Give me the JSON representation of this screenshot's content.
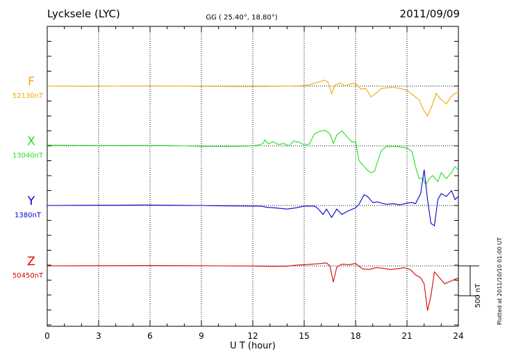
{
  "header": {
    "station": "Lycksele (LYC)",
    "coords": "GG ( 25.40°,  18.80°)",
    "date": "2011/09/09"
  },
  "footer_note": "Plotted at 2011/10/10 01:00 UT",
  "chart_data": {
    "type": "line",
    "xlabel": "U T (hour)",
    "xlim": [
      0,
      24
    ],
    "xticks": [
      "0",
      "3",
      "6",
      "9",
      "12",
      "15",
      "18",
      "21",
      "24"
    ],
    "scale_bar_label": "500 nT",
    "scale_bar_nT": 500,
    "ylim_nT": [
      -1000,
      1000
    ],
    "grid": true,
    "series": [
      {
        "name": "F",
        "baseline_label": "52130nT",
        "color": "#f0a800",
        "points": [
          [
            0,
            0
          ],
          [
            2,
            -2
          ],
          [
            4,
            0
          ],
          [
            6,
            2
          ],
          [
            8,
            0
          ],
          [
            9,
            -3
          ],
          [
            10,
            -6
          ],
          [
            11,
            -8
          ],
          [
            12,
            -8
          ],
          [
            12.7,
            -5
          ],
          [
            13,
            -3
          ],
          [
            14,
            0
          ],
          [
            14.8,
            5
          ],
          [
            15.3,
            20
          ],
          [
            15.8,
            65
          ],
          [
            16.2,
            100
          ],
          [
            16.4,
            60
          ],
          [
            16.6,
            -130
          ],
          [
            16.8,
            20
          ],
          [
            17.1,
            50
          ],
          [
            17.4,
            0
          ],
          [
            17.7,
            40
          ],
          [
            18.0,
            45
          ],
          [
            18.3,
            -50
          ],
          [
            18.6,
            -40
          ],
          [
            18.9,
            -180
          ],
          [
            19.2,
            -120
          ],
          [
            19.5,
            -40
          ],
          [
            19.8,
            -30
          ],
          [
            20.2,
            -20
          ],
          [
            20.6,
            -40
          ],
          [
            21.0,
            -70
          ],
          [
            21.4,
            -160
          ],
          [
            21.7,
            -230
          ],
          [
            22.0,
            -420
          ],
          [
            22.2,
            -500
          ],
          [
            22.5,
            -300
          ],
          [
            22.7,
            -120
          ],
          [
            22.9,
            -200
          ],
          [
            23.1,
            -250
          ],
          [
            23.3,
            -300
          ],
          [
            23.5,
            -200
          ],
          [
            23.8,
            -120
          ],
          [
            24,
            -100
          ]
        ]
      },
      {
        "name": "X",
        "baseline_label": "13040nT",
        "color": "#22dd22",
        "points": [
          [
            0,
            10
          ],
          [
            2,
            7
          ],
          [
            4,
            5
          ],
          [
            5.5,
            7
          ],
          [
            7,
            5
          ],
          [
            8,
            0
          ],
          [
            9,
            -10
          ],
          [
            10,
            -12
          ],
          [
            11,
            -10
          ],
          [
            11.7,
            -5
          ],
          [
            12.3,
            10
          ],
          [
            12.6,
            40
          ],
          [
            12.7,
            100
          ],
          [
            12.9,
            30
          ],
          [
            13.2,
            70
          ],
          [
            13.5,
            20
          ],
          [
            13.8,
            40
          ],
          [
            14.1,
            0
          ],
          [
            14.4,
            80
          ],
          [
            14.7,
            60
          ],
          [
            15.0,
            10
          ],
          [
            15.3,
            30
          ],
          [
            15.6,
            200
          ],
          [
            15.9,
            240
          ],
          [
            16.2,
            260
          ],
          [
            16.5,
            200
          ],
          [
            16.7,
            40
          ],
          [
            16.9,
            180
          ],
          [
            17.2,
            250
          ],
          [
            17.5,
            150
          ],
          [
            17.8,
            60
          ],
          [
            18.0,
            70
          ],
          [
            18.2,
            -250
          ],
          [
            18.5,
            -350
          ],
          [
            18.7,
            -410
          ],
          [
            18.9,
            -450
          ],
          [
            19.1,
            -430
          ],
          [
            19.3,
            -250
          ],
          [
            19.5,
            -80
          ],
          [
            19.8,
            -10
          ],
          [
            20.2,
            -10
          ],
          [
            20.6,
            -20
          ],
          [
            21.0,
            -40
          ],
          [
            21.3,
            -100
          ],
          [
            21.5,
            -350
          ],
          [
            21.7,
            -550
          ],
          [
            21.9,
            -540
          ],
          [
            22.1,
            -650
          ],
          [
            22.3,
            -550
          ],
          [
            22.5,
            -500
          ],
          [
            22.8,
            -600
          ],
          [
            23.0,
            -450
          ],
          [
            23.3,
            -550
          ],
          [
            23.6,
            -450
          ],
          [
            23.8,
            -350
          ],
          [
            24,
            -400
          ]
        ]
      },
      {
        "name": "Y",
        "baseline_label": "1380nT",
        "color": "#0000cc",
        "points": [
          [
            0,
            0
          ],
          [
            2,
            3
          ],
          [
            4,
            5
          ],
          [
            5.5,
            8
          ],
          [
            7,
            5
          ],
          [
            8,
            2
          ],
          [
            9,
            0
          ],
          [
            10,
            -5
          ],
          [
            11,
            -8
          ],
          [
            12,
            -10
          ],
          [
            12.5,
            -12
          ],
          [
            12.8,
            -30
          ],
          [
            13.3,
            -40
          ],
          [
            14,
            -60
          ],
          [
            14.5,
            -40
          ],
          [
            15,
            -10
          ],
          [
            15.6,
            -10
          ],
          [
            15.8,
            -50
          ],
          [
            16.1,
            -150
          ],
          [
            16.3,
            -60
          ],
          [
            16.6,
            -200
          ],
          [
            16.9,
            -60
          ],
          [
            17.2,
            -150
          ],
          [
            17.5,
            -100
          ],
          [
            17.8,
            -60
          ],
          [
            18.0,
            -40
          ],
          [
            18.2,
            20
          ],
          [
            18.5,
            180
          ],
          [
            18.7,
            150
          ],
          [
            19.0,
            50
          ],
          [
            19.3,
            60
          ],
          [
            19.5,
            40
          ],
          [
            19.8,
            20
          ],
          [
            20.2,
            30
          ],
          [
            20.6,
            10
          ],
          [
            21.0,
            40
          ],
          [
            21.3,
            50
          ],
          [
            21.5,
            30
          ],
          [
            21.8,
            200
          ],
          [
            22.0,
            600
          ],
          [
            22.2,
            100
          ],
          [
            22.4,
            -300
          ],
          [
            22.6,
            -340
          ],
          [
            22.8,
            100
          ],
          [
            23.0,
            200
          ],
          [
            23.3,
            150
          ],
          [
            23.6,
            250
          ],
          [
            23.8,
            100
          ],
          [
            24,
            150
          ]
        ]
      },
      {
        "name": "Z",
        "baseline_label": "50450nT",
        "color": "#dd0000",
        "points": [
          [
            0,
            0
          ],
          [
            2,
            2
          ],
          [
            4,
            3
          ],
          [
            6,
            5
          ],
          [
            8,
            3
          ],
          [
            10,
            0
          ],
          [
            12,
            -2
          ],
          [
            12.6,
            -5
          ],
          [
            13,
            -8
          ],
          [
            14,
            -5
          ],
          [
            14.5,
            10
          ],
          [
            15,
            20
          ],
          [
            15.5,
            30
          ],
          [
            16,
            40
          ],
          [
            16.3,
            50
          ],
          [
            16.5,
            0
          ],
          [
            16.7,
            -270
          ],
          [
            16.9,
            -20
          ],
          [
            17.2,
            30
          ],
          [
            17.6,
            20
          ],
          [
            18.0,
            40
          ],
          [
            18.4,
            -50
          ],
          [
            18.8,
            -60
          ],
          [
            19.2,
            -30
          ],
          [
            19.6,
            -40
          ],
          [
            20.0,
            -60
          ],
          [
            20.4,
            -50
          ],
          [
            20.8,
            -30
          ],
          [
            21.2,
            -60
          ],
          [
            21.5,
            -150
          ],
          [
            21.8,
            -200
          ],
          [
            22.0,
            -300
          ],
          [
            22.2,
            -750
          ],
          [
            22.4,
            -500
          ],
          [
            22.6,
            -100
          ],
          [
            22.9,
            -200
          ],
          [
            23.2,
            -300
          ],
          [
            23.6,
            -250
          ],
          [
            24,
            -200
          ]
        ]
      }
    ]
  }
}
